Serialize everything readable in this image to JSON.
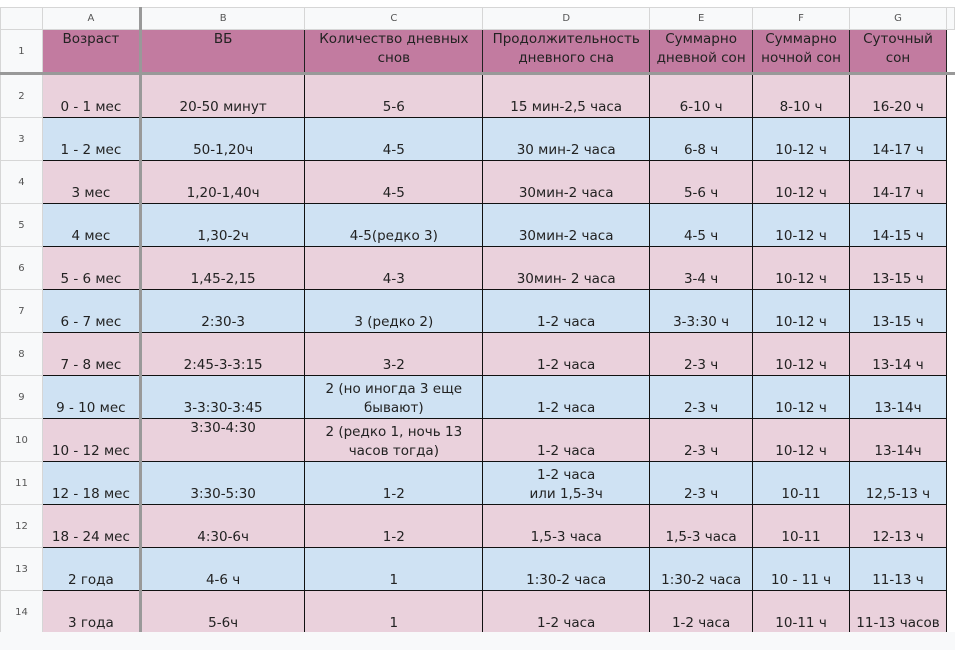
{
  "columns": [
    "A",
    "B",
    "C",
    "D",
    "E",
    "F",
    "G"
  ],
  "header": [
    "Возраст",
    "ВБ",
    "Количество дневных\nснов",
    "Продолжительность\nдневного сна",
    "Суммарно\nдневной сон",
    "Суммарно\nночной сон",
    "Суточный\nсон"
  ],
  "colors": {
    "header": "#c27ba0",
    "pink": "#ead1dc",
    "blue": "#cfe2f3"
  },
  "rows": [
    {
      "n": "2",
      "color": "pink",
      "cells": [
        "0 - 1 мес",
        "20-50 минут",
        "5-6",
        "15 мин-2,5 часа",
        "6-10 ч",
        "8-10 ч",
        "16-20 ч"
      ]
    },
    {
      "n": "3",
      "color": "blue",
      "cells": [
        "1 - 2 мес",
        "50-1,20ч",
        "4-5",
        "30 мин-2 часа",
        "6-8 ч",
        "10-12 ч",
        "14-17 ч"
      ]
    },
    {
      "n": "4",
      "color": "pink",
      "cells": [
        "3 мес",
        "1,20-1,40ч",
        "4-5",
        "30мин-2 часа",
        "5-6 ч",
        "10-12 ч",
        "14-17 ч"
      ]
    },
    {
      "n": "5",
      "color": "blue",
      "cells": [
        "4 мес",
        "1,30-2ч",
        "4-5(редко 3)",
        "30мин-2 часа",
        "4-5 ч",
        "10-12 ч",
        "14-15 ч"
      ]
    },
    {
      "n": "6",
      "color": "pink",
      "cells": [
        "5 - 6 мес",
        "1,45-2,15",
        "4-3",
        "30мин- 2 часа",
        "3-4 ч",
        "10-12 ч",
        "13-15 ч"
      ]
    },
    {
      "n": "7",
      "color": "blue",
      "cells": [
        "6 - 7 мес",
        "2:30-3",
        "3 (редко 2)",
        "1-2 часа",
        "3-3:30 ч",
        "10-12 ч",
        "13-15 ч"
      ]
    },
    {
      "n": "8",
      "color": "pink",
      "cells": [
        "7 - 8 мес",
        "2:45-3-3:15",
        "3-2",
        "1-2 часа",
        "2-3 ч",
        "10-12 ч",
        "13-14 ч"
      ]
    },
    {
      "n": "9",
      "color": "blue",
      "cells": [
        "9 - 10 мес",
        "3-3:30-3:45",
        "2 (но иногда 3 еще\nбывают)",
        "1-2 часа",
        "2-3 ч",
        "10-12 ч",
        "13-14ч"
      ]
    },
    {
      "n": "10",
      "color": "pink",
      "cells": [
        "10 - 12 мес",
        "3:30-4:30",
        "2 (редко 1, ночь 13\nчасов тогда)",
        "1-2 часа",
        "2-3 ч",
        "10-12 ч",
        "13-14ч"
      ]
    },
    {
      "n": "11",
      "color": "blue",
      "cells": [
        "12 - 18 мес",
        "3:30-5:30",
        "1-2",
        "1-2 часа\nили 1,5-3ч",
        "2-3 ч",
        "10-11",
        "12,5-13 ч"
      ]
    },
    {
      "n": "12",
      "color": "pink",
      "cells": [
        "18 - 24 мес",
        "4:30-6ч",
        "1-2",
        "1,5-3 часа",
        "1,5-3 часа",
        "10-11",
        "12-13 ч"
      ]
    },
    {
      "n": "13",
      "color": "blue",
      "cells": [
        "2 года",
        "4-6 ч",
        "1",
        "1:30-2 часа",
        "1:30-2 часа",
        "10 - 11 ч",
        "11-13 ч"
      ]
    },
    {
      "n": "14",
      "color": "pink",
      "cells": [
        "3 года",
        "5-6ч",
        "1",
        "1-2 часа",
        "1-2 часа",
        "10-11 ч",
        "11-13 часов"
      ]
    }
  ]
}
